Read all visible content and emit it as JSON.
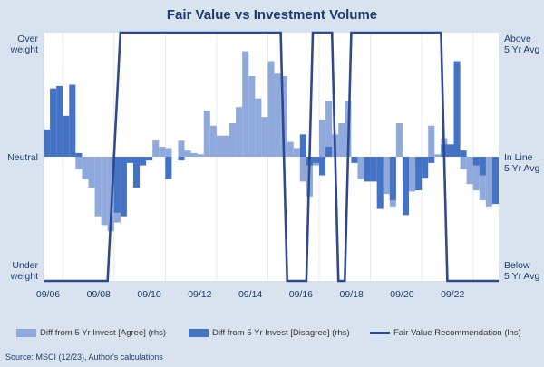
{
  "chart_data": {
    "type": "bar+line",
    "title": "Fair Value vs Investment Volume",
    "x_start": 2006.0,
    "x_end": 2023.75,
    "x_ticks": [
      "09/06",
      "09/08",
      "09/10",
      "09/12",
      "09/14",
      "09/16",
      "09/18",
      "09/20",
      "09/22"
    ],
    "left_axis_labels": {
      "top": [
        "Over",
        "weight"
      ],
      "middle": [
        "Neutral"
      ],
      "bottom": [
        "Under",
        "weight"
      ]
    },
    "right_axis_labels": {
      "top": [
        "Above",
        "5 Yr Avg"
      ],
      "middle": [
        "In Line",
        "5 Yr Avg"
      ],
      "bottom": [
        "Below",
        "5 Yr Avg"
      ]
    },
    "right_axis_range": [
      -1,
      1
    ],
    "left_axis_range": [
      -1,
      1
    ],
    "series": [
      {
        "name": "Diff from 5 Yr Invest [Agree] (rhs)",
        "color": "#8fa9dc",
        "points": [
          [
            2007.25,
            -0.1
          ],
          [
            2007.5,
            -0.18
          ],
          [
            2007.75,
            -0.25
          ],
          [
            2008.0,
            -0.48
          ],
          [
            2008.25,
            -0.55
          ],
          [
            2008.5,
            -0.6
          ],
          [
            2008.75,
            -0.53
          ],
          [
            2010.25,
            0.13
          ],
          [
            2010.5,
            0.08
          ],
          [
            2010.75,
            0.07
          ],
          [
            2011.25,
            0.13
          ],
          [
            2011.5,
            0.05
          ],
          [
            2011.75,
            0.03
          ],
          [
            2012.0,
            0.02
          ],
          [
            2012.25,
            0.37
          ],
          [
            2012.5,
            0.25
          ],
          [
            2012.75,
            0.17
          ],
          [
            2013.0,
            0.17
          ],
          [
            2013.25,
            0.27
          ],
          [
            2013.5,
            0.4
          ],
          [
            2013.75,
            0.85
          ],
          [
            2014.0,
            0.65
          ],
          [
            2014.25,
            0.47
          ],
          [
            2014.5,
            0.32
          ],
          [
            2014.75,
            0.77
          ],
          [
            2015.0,
            0.67
          ],
          [
            2015.25,
            0.65
          ],
          [
            2015.5,
            0.12
          ],
          [
            2015.75,
            0.07
          ],
          [
            2016.0,
            -0.2
          ],
          [
            2016.25,
            -0.32
          ],
          [
            2016.5,
            -0.07
          ],
          [
            2016.75,
            0.3
          ],
          [
            2017.0,
            0.45
          ],
          [
            2017.25,
            0.18
          ],
          [
            2017.5,
            0.27
          ],
          [
            2017.75,
            0.45
          ],
          [
            2018.25,
            -0.18
          ],
          [
            2018.5,
            -0.15
          ],
          [
            2019.0,
            -0.05
          ],
          [
            2019.25,
            -0.3
          ],
          [
            2019.5,
            -0.4
          ],
          [
            2019.75,
            0.27
          ],
          [
            2020.0,
            -0.2
          ],
          [
            2020.25,
            -0.28
          ],
          [
            2020.5,
            -0.05
          ],
          [
            2020.75,
            -0.03
          ],
          [
            2021.0,
            0.25
          ],
          [
            2021.25,
            0.02
          ],
          [
            2021.5,
            0.15
          ],
          [
            2021.75,
            0.05
          ],
          [
            2022.0,
            0.77
          ],
          [
            2022.25,
            -0.1
          ],
          [
            2022.5,
            -0.22
          ],
          [
            2022.75,
            -0.27
          ],
          [
            2023.0,
            -0.35
          ],
          [
            2023.25,
            -0.4
          ],
          [
            2023.5,
            -0.27
          ]
        ]
      },
      {
        "name": "Diff from 5 Yr Invest [Disagree] (rhs)",
        "color": "#4472c4",
        "points": [
          [
            2006.0,
            0.22
          ],
          [
            2006.25,
            0.55
          ],
          [
            2006.5,
            0.57
          ],
          [
            2006.75,
            0.33
          ],
          [
            2007.0,
            0.58
          ],
          [
            2007.25,
            0.03
          ],
          [
            2008.75,
            -0.45
          ],
          [
            2009.0,
            -0.48
          ],
          [
            2009.25,
            -0.05
          ],
          [
            2009.5,
            -0.25
          ],
          [
            2009.75,
            -0.07
          ],
          [
            2010.0,
            -0.03
          ],
          [
            2010.75,
            -0.18
          ],
          [
            2011.25,
            -0.03
          ],
          [
            2016.0,
            0.18
          ],
          [
            2016.25,
            -0.07
          ],
          [
            2016.5,
            -0.05
          ],
          [
            2016.75,
            -0.15
          ],
          [
            2017.0,
            0.08
          ],
          [
            2018.0,
            -0.05
          ],
          [
            2018.5,
            -0.2
          ],
          [
            2018.75,
            -0.2
          ],
          [
            2019.0,
            -0.42
          ],
          [
            2019.5,
            -0.35
          ],
          [
            2020.0,
            -0.47
          ],
          [
            2020.5,
            -0.27
          ],
          [
            2020.75,
            -0.17
          ],
          [
            2021.0,
            -0.05
          ],
          [
            2021.5,
            0.1
          ],
          [
            2021.75,
            0.1
          ],
          [
            2022.0,
            0.77
          ],
          [
            2022.25,
            0.05
          ],
          [
            2022.75,
            -0.07
          ],
          [
            2023.0,
            -0.15
          ],
          [
            2023.5,
            -0.38
          ]
        ]
      },
      {
        "name": "Fair Value Recommendation (lhs)",
        "color": "#2e4a8c",
        "type": "step-line",
        "points": [
          [
            2006.0,
            -1
          ],
          [
            2008.5,
            -1
          ],
          [
            2009.0,
            1
          ],
          [
            2015.25,
            1
          ],
          [
            2015.5,
            -1
          ],
          [
            2016.25,
            -1
          ],
          [
            2016.5,
            1
          ],
          [
            2017.25,
            1
          ],
          [
            2017.5,
            -1
          ],
          [
            2017.75,
            -1
          ],
          [
            2018.0,
            1
          ],
          [
            2021.5,
            1
          ],
          [
            2021.75,
            -1
          ],
          [
            2023.75,
            -1
          ]
        ]
      }
    ],
    "legend": [
      {
        "label": "Diff from 5 Yr Invest [Agree] (rhs)",
        "color": "#8fa9dc",
        "shape": "box"
      },
      {
        "label": "Diff from 5 Yr Invest [Disagree] (rhs)",
        "color": "#4472c4",
        "shape": "box"
      },
      {
        "label": "Fair Value Recommendation (lhs)",
        "color": "#2e4a8c",
        "shape": "line"
      }
    ],
    "source": "Source: MSCI (12/23), Author's calculations"
  }
}
